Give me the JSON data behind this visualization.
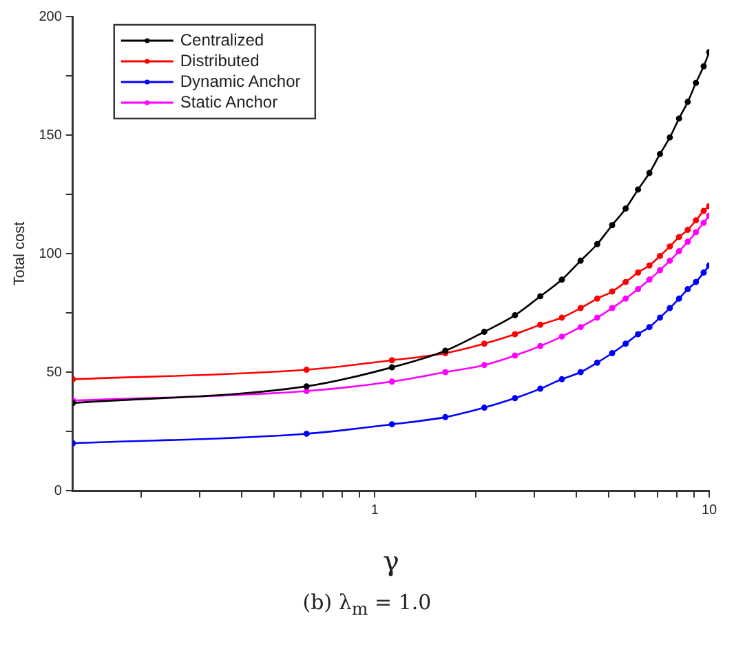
{
  "chart_data": {
    "type": "line",
    "xlabel": "γ",
    "ylabel": "Total cost",
    "annotations": [
      "(b) λ$_{m}$ = 1.0"
    ],
    "x": [
      0.125,
      0.625,
      1.125,
      1.625,
      2.125,
      2.625,
      3.125,
      3.625,
      4.125,
      4.625,
      5.125,
      5.625,
      6.125,
      6.625,
      7.125,
      7.625,
      8.125,
      8.625,
      9.125,
      9.625,
      10
    ],
    "series": [
      {
        "name": "Centralized",
        "color": "#000000",
        "values": [
          37,
          44,
          52,
          59,
          67,
          74,
          82,
          89,
          97,
          104,
          112,
          119,
          127,
          134,
          142,
          149,
          157,
          164,
          172,
          179,
          185
        ]
      },
      {
        "name": "Distributed",
        "color": "#ff0000",
        "values": [
          47,
          51,
          55,
          58,
          62,
          66,
          70,
          73,
          77,
          81,
          84,
          88,
          92,
          95,
          99,
          103,
          107,
          110,
          114,
          118,
          120
        ]
      },
      {
        "name": "Dynamic Anchor",
        "color": "#0000ff",
        "values": [
          20,
          24,
          28,
          31,
          35,
          39,
          43,
          47,
          50,
          54,
          58,
          62,
          66,
          69,
          73,
          77,
          81,
          85,
          88,
          92,
          95
        ]
      },
      {
        "name": "Static Anchor",
        "color": "#ff00ff",
        "values": [
          38,
          42,
          46,
          50,
          53,
          57,
          61,
          65,
          69,
          73,
          77,
          81,
          85,
          89,
          93,
          97,
          101,
          105,
          109,
          113,
          116
        ]
      }
    ],
    "log": "x",
    "xlim": [
      0.125,
      10
    ],
    "xticks": [
      {
        "value": 0.2,
        "label": null
      },
      {
        "value": 0.3,
        "label": null
      },
      {
        "value": 0.4,
        "label": null
      },
      {
        "value": 0.5,
        "label": null
      },
      {
        "value": 0.6,
        "label": null
      },
      {
        "value": 0.7,
        "label": null
      },
      {
        "value": 0.8,
        "label": null
      },
      {
        "value": 0.9,
        "label": null
      },
      1,
      {
        "value": 2,
        "label": null
      },
      {
        "value": 3,
        "label": null
      },
      {
        "value": 4,
        "label": null
      },
      {
        "value": 5,
        "label": null
      },
      {
        "value": 6,
        "label": null
      },
      {
        "value": 7,
        "label": null
      },
      {
        "value": 8,
        "label": null
      },
      {
        "value": 9,
        "label": null
      },
      10
    ],
    "ylim": [
      0,
      200
    ],
    "yticks": [
      0,
      {
        "value": 25,
        "label": null
      },
      50,
      {
        "value": 75,
        "label": null
      },
      100,
      {
        "value": 125,
        "label": null
      },
      150,
      {
        "value": 175,
        "label": null
      },
      200
    ],
    "grid": false,
    "legend": "top left",
    "marker": "circle",
    "line_style": "solid"
  }
}
